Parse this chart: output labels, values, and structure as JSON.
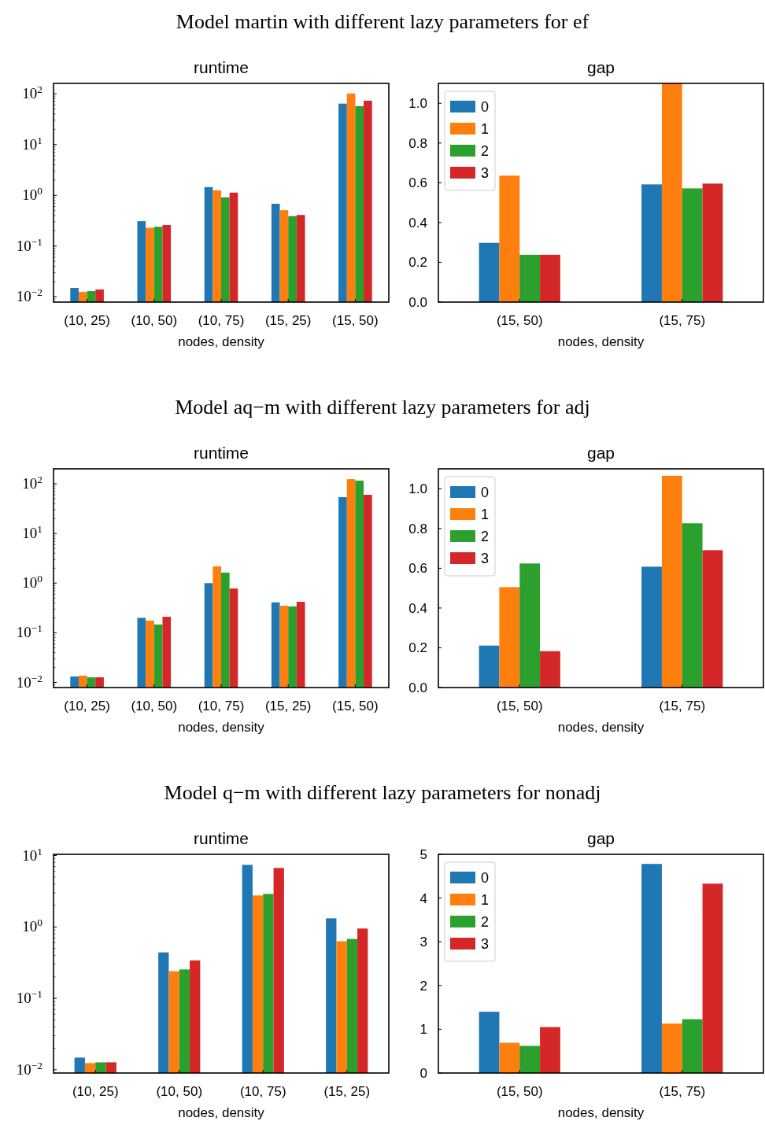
{
  "chart_data": [
    {
      "type": "bar",
      "title": "runtime",
      "annotations": [
        "Model martin with different lazy parameters for ef"
      ],
      "xlabel": "nodes, density",
      "categories": [
        "(10, 25)",
        "(10, 50)",
        "(10, 75)",
        "(15, 25)",
        "(15, 50)"
      ],
      "log": true,
      "ylim": [
        0.0079,
        160
      ],
      "yticks": [
        {
          "value": 0.01,
          "label": "10$^{−2}$"
        },
        {
          "value": 0.1,
          "label": "10$^{−1}$"
        },
        {
          "value": 1,
          "label": "10$^{0}$"
        },
        {
          "value": 10,
          "label": "10$^{1}$"
        },
        {
          "value": 100,
          "label": "10$^{2}$"
        }
      ],
      "series": [
        {
          "color": "#1f77b4",
          "values": [
            0.015,
            0.31,
            1.45,
            0.68,
            64
          ]
        },
        {
          "color": "#ff7f0e",
          "values": [
            0.0125,
            0.23,
            1.25,
            0.51,
            101
          ]
        },
        {
          "color": "#2ca02c",
          "values": [
            0.013,
            0.24,
            0.91,
            0.39,
            57
          ]
        },
        {
          "color": "#d62728",
          "values": [
            0.014,
            0.26,
            1.13,
            0.41,
            73
          ]
        }
      ]
    },
    {
      "type": "bar",
      "title": "gap",
      "xlabel": "nodes, density",
      "categories": [
        "(15, 50)",
        "(15, 75)"
      ],
      "ylim": [
        0,
        1.1
      ],
      "yticks": [
        {
          "value": 0,
          "label": "0.0"
        },
        0.2,
        0.4,
        0.6,
        0.8,
        {
          "value": 1,
          "label": "1.0"
        }
      ],
      "legend": "top left",
      "series": [
        {
          "name": "0",
          "color": "#1f77b4",
          "values": [
            0.298,
            0.592
          ]
        },
        {
          "name": "1",
          "color": "#ff7f0e",
          "values": [
            0.636,
            1.1
          ]
        },
        {
          "name": "2",
          "color": "#2ca02c",
          "values": [
            0.238,
            0.572
          ]
        },
        {
          "name": "3",
          "color": "#d62728",
          "values": [
            0.238,
            0.596
          ]
        }
      ]
    },
    {
      "type": "bar",
      "title": "runtime",
      "annotations": [
        "Model aq−m with different lazy parameters for adj"
      ],
      "xlabel": "nodes, density",
      "categories": [
        "(10, 25)",
        "(10, 50)",
        "(10, 75)",
        "(15, 25)",
        "(15, 50)"
      ],
      "log": true,
      "ylim": [
        0.0079,
        200
      ],
      "yticks": [
        {
          "value": 0.01,
          "label": "10$^{−2}$"
        },
        {
          "value": 0.1,
          "label": "10$^{−1}$"
        },
        {
          "value": 1,
          "label": "10$^{0}$"
        },
        {
          "value": 10,
          "label": "10$^{1}$"
        },
        {
          "value": 100,
          "label": "10$^{2}$"
        }
      ],
      "series": [
        {
          "color": "#1f77b4",
          "values": [
            0.0132,
            0.2,
            1.0,
            0.41,
            54
          ]
        },
        {
          "color": "#ff7f0e",
          "values": [
            0.0137,
            0.176,
            2.18,
            0.35,
            124
          ]
        },
        {
          "color": "#2ca02c",
          "values": [
            0.0127,
            0.147,
            1.63,
            0.34,
            116
          ]
        },
        {
          "color": "#d62728",
          "values": [
            0.0127,
            0.21,
            0.78,
            0.42,
            60
          ]
        }
      ]
    },
    {
      "type": "bar",
      "title": "gap",
      "xlabel": "nodes, density",
      "categories": [
        "(15, 50)",
        "(15, 75)"
      ],
      "ylim": [
        0,
        1.1
      ],
      "yticks": [
        {
          "value": 0,
          "label": "0.0"
        },
        0.2,
        0.4,
        0.6,
        0.8,
        {
          "value": 1,
          "label": "1.0"
        }
      ],
      "legend": "top left",
      "series": [
        {
          "name": "0",
          "color": "#1f77b4",
          "values": [
            0.211,
            0.608
          ]
        },
        {
          "name": "1",
          "color": "#ff7f0e",
          "values": [
            0.505,
            1.065
          ]
        },
        {
          "name": "2",
          "color": "#2ca02c",
          "values": [
            0.624,
            0.826
          ]
        },
        {
          "name": "3",
          "color": "#d62728",
          "values": [
            0.183,
            0.691
          ]
        }
      ]
    },
    {
      "type": "bar",
      "title": "runtime",
      "annotations": [
        "Model q−m with different lazy parameters for nonadj"
      ],
      "xlabel": "nodes, density",
      "categories": [
        "(10, 25)",
        "(10, 50)",
        "(10, 75)",
        "(15, 25)"
      ],
      "log": true,
      "ylim": [
        0.009,
        10.4
      ],
      "yticks": [
        {
          "value": 0.01,
          "label": "10$^{−2}$"
        },
        {
          "value": 0.1,
          "label": "10$^{−1}$"
        },
        {
          "value": 1,
          "label": "10$^{0}$"
        },
        {
          "value": 10,
          "label": "10$^{1}$"
        }
      ],
      "series": [
        {
          "color": "#1f77b4",
          "values": [
            0.0148,
            0.44,
            7.4,
            1.32
          ]
        },
        {
          "color": "#ff7f0e",
          "values": [
            0.0124,
            0.24,
            2.76,
            0.63
          ]
        },
        {
          "color": "#2ca02c",
          "values": [
            0.0127,
            0.254,
            2.9,
            0.68
          ]
        },
        {
          "color": "#d62728",
          "values": [
            0.0127,
            0.34,
            6.7,
            0.95
          ]
        }
      ]
    },
    {
      "type": "bar",
      "title": "gap",
      "xlabel": "nodes, density",
      "categories": [
        "(15, 50)",
        "(15, 75)"
      ],
      "ylim": [
        0,
        5
      ],
      "yticks": [
        0,
        1,
        2,
        3,
        4,
        5
      ],
      "legend": "top left",
      "series": [
        {
          "name": "0",
          "color": "#1f77b4",
          "values": [
            1.4,
            4.78
          ]
        },
        {
          "name": "1",
          "color": "#ff7f0e",
          "values": [
            0.69,
            1.13
          ]
        },
        {
          "name": "2",
          "color": "#2ca02c",
          "values": [
            0.62,
            1.23
          ]
        },
        {
          "name": "3",
          "color": "#d62728",
          "values": [
            1.05,
            4.33
          ]
        }
      ]
    }
  ]
}
